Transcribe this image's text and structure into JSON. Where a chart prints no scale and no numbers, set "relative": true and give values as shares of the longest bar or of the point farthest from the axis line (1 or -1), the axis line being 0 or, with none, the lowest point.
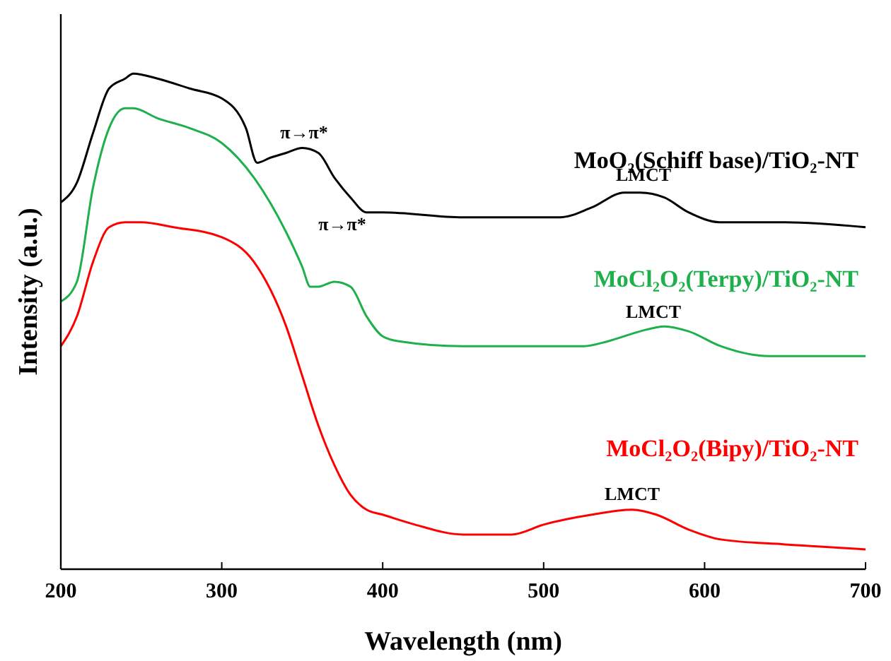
{
  "chart_data": {
    "type": "line",
    "relative": true,
    "xlabel": "Wavelength (nm)",
    "ylabel": "Intensity (a.u.)",
    "xlim": [
      200,
      700
    ],
    "xticks": [
      200,
      300,
      400,
      500,
      600,
      700
    ],
    "legend": false,
    "series": [
      {
        "name": "MoO₂(Schiff base)/TiO₂-NT",
        "color": "#000000",
        "x": [
          200,
          210,
          220,
          230,
          240,
          245,
          260,
          280,
          300,
          315,
          322,
          330,
          340,
          350,
          360,
          370,
          380,
          390,
          400,
          450,
          500,
          510,
          530,
          550,
          560,
          575,
          590,
          610,
          650,
          700
        ],
        "values": [
          0.74,
          0.78,
          0.88,
          0.97,
          0.99,
          1.0,
          0.99,
          0.97,
          0.95,
          0.89,
          0.82,
          0.83,
          0.84,
          0.85,
          0.84,
          0.79,
          0.75,
          0.72,
          0.72,
          0.71,
          0.71,
          0.71,
          0.73,
          0.76,
          0.76,
          0.75,
          0.72,
          0.7,
          0.7,
          0.69
        ]
      },
      {
        "name": "MoCl₂O₂(Terpy)/TiO₂-NT",
        "color": "#1db04b",
        "x": [
          200,
          210,
          220,
          230,
          240,
          245,
          260,
          280,
          300,
          320,
          340,
          350,
          355,
          360,
          370,
          380,
          390,
          400,
          410,
          450,
          500,
          525,
          540,
          560,
          575,
          590,
          610,
          640,
          700
        ],
        "values": [
          0.54,
          0.58,
          0.77,
          0.89,
          0.93,
          0.93,
          0.91,
          0.89,
          0.86,
          0.79,
          0.68,
          0.61,
          0.57,
          0.57,
          0.58,
          0.57,
          0.51,
          0.47,
          0.46,
          0.45,
          0.45,
          0.45,
          0.46,
          0.48,
          0.49,
          0.48,
          0.45,
          0.43,
          0.43
        ]
      },
      {
        "name": "MoCl₂O₂(Bipy)/TiO₂-NT",
        "color": "#ff0000",
        "x": [
          200,
          210,
          220,
          230,
          240,
          250,
          270,
          300,
          320,
          340,
          350,
          360,
          370,
          380,
          390,
          400,
          420,
          450,
          480,
          500,
          530,
          555,
          570,
          590,
          610,
          650,
          700
        ],
        "values": [
          0.45,
          0.51,
          0.62,
          0.69,
          0.7,
          0.7,
          0.69,
          0.67,
          0.62,
          0.49,
          0.39,
          0.29,
          0.21,
          0.15,
          0.12,
          0.11,
          0.09,
          0.07,
          0.07,
          0.09,
          0.11,
          0.12,
          0.11,
          0.08,
          0.06,
          0.05,
          0.04
        ]
      }
    ],
    "annotations": [
      "π→π*",
      "π→π*",
      "LMCT",
      "LMCT",
      "LMCT"
    ]
  }
}
